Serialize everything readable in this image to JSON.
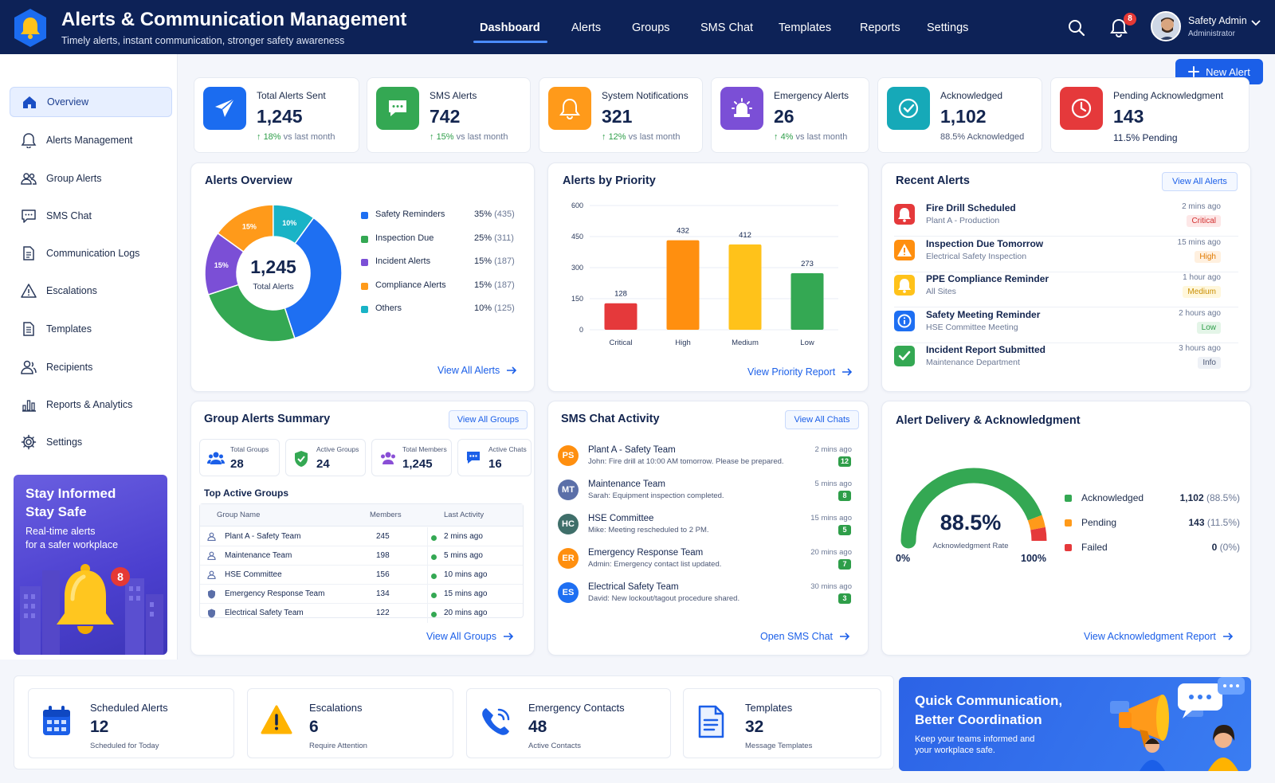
{
  "header": {
    "title": "Alerts & Communication Management",
    "subtitle": "Timely alerts, instant communication, stronger safety awareness",
    "nav": [
      "Dashboard",
      "Alerts",
      "Groups",
      "SMS Chat",
      "Templates",
      "Reports",
      "Settings"
    ],
    "notification_count": "8",
    "user_name": "Safety Admin",
    "user_role": "Administrator"
  },
  "new_alert_label": "New Alert",
  "sidebar": {
    "items": [
      "Overview",
      "Alerts Management",
      "Group Alerts",
      "SMS Chat",
      "Communication Logs",
      "Escalations",
      "Templates",
      "Recipients",
      "Reports & Analytics",
      "Settings"
    ],
    "promo": {
      "line1": "Stay Informed",
      "line2": "Stay Safe",
      "text1": "Real-time alerts",
      "text2": "for a safer workplace",
      "badge": "8"
    }
  },
  "stats": [
    {
      "label": "Total Alerts Sent",
      "value": "1,245",
      "delta": "18%",
      "note": "vs last month",
      "color": "#1b6cf0"
    },
    {
      "label": "SMS Alerts",
      "value": "742",
      "delta": "15%",
      "note": "vs last month",
      "color": "#34a853"
    },
    {
      "label": "System Notifications",
      "value": "321",
      "delta": "12%",
      "note": "vs last month",
      "color": "#ff9a1a"
    },
    {
      "label": "Emergency Alerts",
      "value": "26",
      "delta": "4%",
      "note": "vs last month",
      "color": "#7b4fd6"
    },
    {
      "label": "Acknowledged",
      "value": "1,102",
      "note": "88.5% Acknowledged",
      "color": "#16a9b8"
    },
    {
      "label": "Pending Acknowledgment",
      "value": "143",
      "note": "11.5% Pending",
      "color": "#e5393b"
    }
  ],
  "overview": {
    "title": "Alerts Overview",
    "center_value": "1,245",
    "center_label": "Total Alerts",
    "link": "View All Alerts",
    "legend": [
      {
        "name": "Safety Reminders",
        "pct": "35%",
        "count": "(435)",
        "color": "#1e6ff2"
      },
      {
        "name": "Inspection Due",
        "pct": "25%",
        "count": "(311)",
        "color": "#34a853"
      },
      {
        "name": "Incident Alerts",
        "pct": "15%",
        "count": "(187)",
        "color": "#7b4fd6"
      },
      {
        "name": "Compliance Alerts",
        "pct": "15%",
        "count": "(187)",
        "color": "#ff9a1a"
      },
      {
        "name": "Others",
        "pct": "10%",
        "count": "(125)",
        "color": "#19b3c6"
      }
    ]
  },
  "chart_data": [
    {
      "type": "pie",
      "title": "Alerts Overview",
      "categories": [
        "Safety Reminders",
        "Inspection Due",
        "Incident Alerts",
        "Compliance Alerts",
        "Others"
      ],
      "values": [
        435,
        311,
        187,
        187,
        125
      ],
      "percent_labels": [
        "",
        "",
        "15%",
        "15%",
        "10%"
      ]
    },
    {
      "type": "bar",
      "title": "Alerts by Priority",
      "categories": [
        "Critical",
        "High",
        "Medium",
        "Low"
      ],
      "values": [
        128,
        432,
        412,
        273
      ],
      "colors": [
        "#e5393b",
        "#ff8f0f",
        "#ffc21a",
        "#34a853"
      ],
      "ylim": [
        0,
        600
      ],
      "yticks": [
        0,
        150,
        300,
        450,
        600
      ],
      "grid": true
    }
  ],
  "priority": {
    "title": "Alerts by Priority",
    "link": "View Priority Report"
  },
  "recent": {
    "title": "Recent Alerts",
    "link": "View All Alerts",
    "items": [
      {
        "title": "Fire Drill Scheduled",
        "sub": "Plant A - Production",
        "time": "2 mins ago",
        "badge": "Critical",
        "color": "#e5393b",
        "badge_bg": "#fde7e7",
        "badge_fg": "#d32f2f"
      },
      {
        "title": "Inspection Due Tomorrow",
        "sub": "Electrical Safety Inspection",
        "time": "15 mins ago",
        "badge": "High",
        "color": "#ff8f0f",
        "badge_bg": "#fff0df",
        "badge_fg": "#e07a00"
      },
      {
        "title": "PPE Compliance Reminder",
        "sub": "All Sites",
        "time": "1 hour ago",
        "badge": "Medium",
        "color": "#ffc21a",
        "badge_bg": "#fff7dc",
        "badge_fg": "#c98e00"
      },
      {
        "title": "Safety Meeting Reminder",
        "sub": "HSE Committee Meeting",
        "time": "2 hours ago",
        "badge": "Low",
        "color": "#1e6ff2",
        "badge_bg": "#e4f5e8",
        "badge_fg": "#2e9e49"
      },
      {
        "title": "Incident Report Submitted",
        "sub": "Maintenance Department",
        "time": "3 hours ago",
        "badge": "Info",
        "color": "#34a853",
        "badge_bg": "#eef1f6",
        "badge_fg": "#4b5775"
      }
    ]
  },
  "groups": {
    "title": "Group Alerts Summary",
    "view_btn": "View All Groups",
    "stats": [
      {
        "label": "Total Groups",
        "value": "28"
      },
      {
        "label": "Active Groups",
        "value": "24"
      },
      {
        "label": "Total Members",
        "value": "1,245"
      },
      {
        "label": "Active Chats",
        "value": "16"
      }
    ],
    "top_title": "Top Active Groups",
    "columns": [
      "Group Name",
      "Members",
      "Last Activity"
    ],
    "rows": [
      {
        "name": "Plant A - Safety Team",
        "members": "245",
        "last": "2 mins ago"
      },
      {
        "name": "Maintenance Team",
        "members": "198",
        "last": "5 mins ago"
      },
      {
        "name": "HSE Committee",
        "members": "156",
        "last": "10 mins ago"
      },
      {
        "name": "Emergency Response Team",
        "members": "134",
        "last": "15 mins ago"
      },
      {
        "name": "Electrical Safety Team",
        "members": "122",
        "last": "20 mins ago"
      }
    ],
    "link": "View All Groups"
  },
  "sms": {
    "title": "SMS Chat Activity",
    "view_btn": "View All Chats",
    "items": [
      {
        "initials": "PS",
        "name": "Plant A - Safety Team",
        "msg": "John: Fire drill at 10:00 AM tomorrow. Please be prepared.",
        "time": "2 mins ago",
        "count": "12",
        "color": "#ff8f0f"
      },
      {
        "initials": "MT",
        "name": "Maintenance Team",
        "msg": "Sarah: Equipment inspection completed.",
        "time": "5 mins ago",
        "count": "8",
        "color": "#5b6fa8"
      },
      {
        "initials": "HC",
        "name": "HSE Committee",
        "msg": "Mike: Meeting rescheduled to 2 PM.",
        "time": "15 mins ago",
        "count": "5",
        "color": "#3f6f6a"
      },
      {
        "initials": "ER",
        "name": "Emergency Response Team",
        "msg": "Admin: Emergency contact list updated.",
        "time": "20 mins ago",
        "count": "7",
        "color": "#ff8f0f"
      },
      {
        "initials": "ES",
        "name": "Electrical Safety Team",
        "msg": "David: New lockout/tagout procedure shared.",
        "time": "30 mins ago",
        "count": "3",
        "color": "#1e6ff2"
      }
    ],
    "link": "Open SMS Chat"
  },
  "delivery": {
    "title": "Alert Delivery & Acknowledgment",
    "rate": "88.5%",
    "rate_fraction": 0.885,
    "rate_label": "Acknowledgment Rate",
    "min": "0%",
    "max": "100%",
    "legend": [
      {
        "name": "Acknowledged",
        "value": "1,102",
        "pct": "(88.5%)",
        "color": "#34a853"
      },
      {
        "name": "Pending",
        "value": "143",
        "pct": "(11.5%)",
        "color": "#ff9a1a"
      },
      {
        "name": "Failed",
        "value": "0",
        "pct": "(0%)",
        "color": "#e5393b"
      }
    ],
    "link": "View Acknowledgment Report"
  },
  "bottom": [
    {
      "title": "Scheduled Alerts",
      "value": "12",
      "sub": "Scheduled for Today",
      "icon": "calendar-icon"
    },
    {
      "title": "Escalations",
      "value": "6",
      "sub": "Require Attention",
      "icon": "warning-icon"
    },
    {
      "title": "Emergency Contacts",
      "value": "48",
      "sub": "Active Contacts",
      "icon": "phone-icon"
    },
    {
      "title": "Templates",
      "value": "32",
      "sub": "Message Templates",
      "icon": "document-icon"
    }
  ],
  "banner": {
    "line1": "Quick Communication,",
    "line2": "Better Coordination",
    "text1": "Keep your teams informed and",
    "text2": "your workplace safe."
  }
}
